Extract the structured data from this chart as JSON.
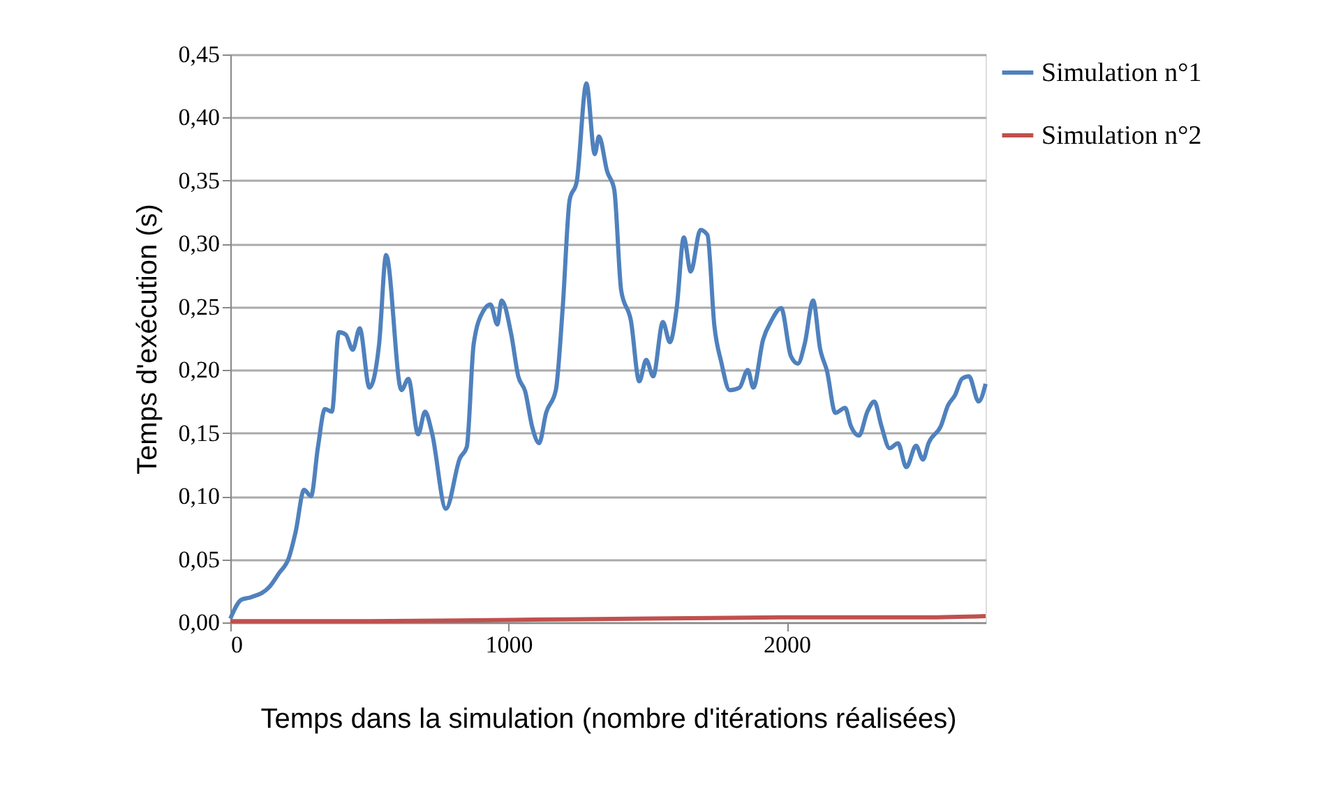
{
  "chart_data": {
    "type": "line",
    "xlabel": "Temps dans la simulation (nombre d'itérations réalisées)",
    "ylabel": "Temps d'exécution (s)",
    "xlim": [
      0,
      2715
    ],
    "xticks": [
      0,
      1000,
      2000
    ],
    "ylim": [
      0,
      0.45
    ],
    "yticks": [
      {
        "value": 0,
        "label": "0,00"
      },
      {
        "value": 0.05,
        "label": "0,05"
      },
      {
        "value": 0.1,
        "label": "0,10"
      },
      {
        "value": 0.15,
        "label": "0,15"
      },
      {
        "value": 0.2,
        "label": "0,20"
      },
      {
        "value": 0.25,
        "label": "0,25"
      },
      {
        "value": 0.3,
        "label": "0,30"
      },
      {
        "value": 0.35,
        "label": "0,35"
      },
      {
        "value": 0.4,
        "label": "0,40"
      },
      {
        "value": 0.45,
        "label": "0,45"
      }
    ],
    "grid": "y",
    "legend": "right",
    "marker": "none",
    "line_style": "solid",
    "series": [
      {
        "name": "Simulation n°1",
        "color": "#4f81bd",
        "x": [
          0,
          40,
          75,
          140,
          175,
          210,
          235,
          265,
          290,
          315,
          340,
          365,
          390,
          415,
          440,
          465,
          500,
          535,
          560,
          615,
          640,
          675,
          700,
          725,
          775,
          825,
          850,
          875,
          910,
          935,
          960,
          975,
          1010,
          1035,
          1060,
          1085,
          1110,
          1135,
          1170,
          1195,
          1220,
          1245,
          1280,
          1310,
          1325,
          1355,
          1380,
          1405,
          1440,
          1470,
          1495,
          1520,
          1555,
          1580,
          1605,
          1630,
          1655,
          1690,
          1715,
          1740,
          1765,
          1795,
          1830,
          1860,
          1880,
          1915,
          1945,
          1980,
          2015,
          2040,
          2065,
          2095,
          2120,
          2145,
          2175,
          2210,
          2230,
          2260,
          2290,
          2315,
          2340,
          2370,
          2400,
          2430,
          2465,
          2490,
          2510,
          2555,
          2580,
          2605,
          2630,
          2655,
          2690,
          2715
        ],
        "values": [
          0.003,
          0.018,
          0.02,
          0.028,
          0.039,
          0.051,
          0.072,
          0.105,
          0.1,
          0.139,
          0.169,
          0.167,
          0.23,
          0.228,
          0.216,
          0.233,
          0.186,
          0.221,
          0.291,
          0.184,
          0.193,
          0.149,
          0.167,
          0.15,
          0.09,
          0.13,
          0.139,
          0.221,
          0.247,
          0.252,
          0.236,
          0.255,
          0.228,
          0.195,
          0.183,
          0.155,
          0.142,
          0.166,
          0.184,
          0.25,
          0.335,
          0.349,
          0.427,
          0.371,
          0.385,
          0.357,
          0.343,
          0.263,
          0.239,
          0.191,
          0.208,
          0.195,
          0.238,
          0.222,
          0.25,
          0.305,
          0.278,
          0.311,
          0.307,
          0.235,
          0.206,
          0.184,
          0.186,
          0.2,
          0.186,
          0.224,
          0.239,
          0.249,
          0.211,
          0.205,
          0.221,
          0.255,
          0.217,
          0.199,
          0.166,
          0.17,
          0.156,
          0.148,
          0.167,
          0.175,
          0.156,
          0.138,
          0.142,
          0.123,
          0.14,
          0.129,
          0.142,
          0.156,
          0.172,
          0.18,
          0.193,
          0.195,
          0.175,
          0.189
        ]
      },
      {
        "name": "Simulation n°2",
        "color": "#c0504d",
        "x": [
          0,
          500,
          1000,
          1500,
          2000,
          2500,
          2715
        ],
        "values": [
          0.001,
          0.001,
          0.002,
          0.003,
          0.004,
          0.004,
          0.005
        ]
      }
    ]
  }
}
